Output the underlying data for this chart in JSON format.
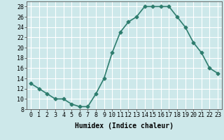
{
  "x": [
    0,
    1,
    2,
    3,
    4,
    5,
    6,
    7,
    8,
    9,
    10,
    11,
    12,
    13,
    14,
    15,
    16,
    17,
    18,
    19,
    20,
    21,
    22,
    23
  ],
  "y": [
    13,
    12,
    11,
    10,
    10,
    9,
    8.5,
    8.5,
    11,
    14,
    19,
    23,
    25,
    26,
    28,
    28,
    28,
    28,
    26,
    24,
    21,
    19,
    16,
    15
  ],
  "line_color": "#2e7d6e",
  "marker": "D",
  "marker_size": 2.5,
  "bg_color": "#cde8ea",
  "grid_color": "#ffffff",
  "xlabel": "Humidex (Indice chaleur)",
  "ylim": [
    8,
    29
  ],
  "yticks": [
    8,
    10,
    12,
    14,
    16,
    18,
    20,
    22,
    24,
    26,
    28
  ],
  "xlim": [
    -0.5,
    23.5
  ],
  "xlabel_fontsize": 7,
  "tick_fontsize": 6,
  "line_width": 1.2,
  "title_fontsize": 9
}
